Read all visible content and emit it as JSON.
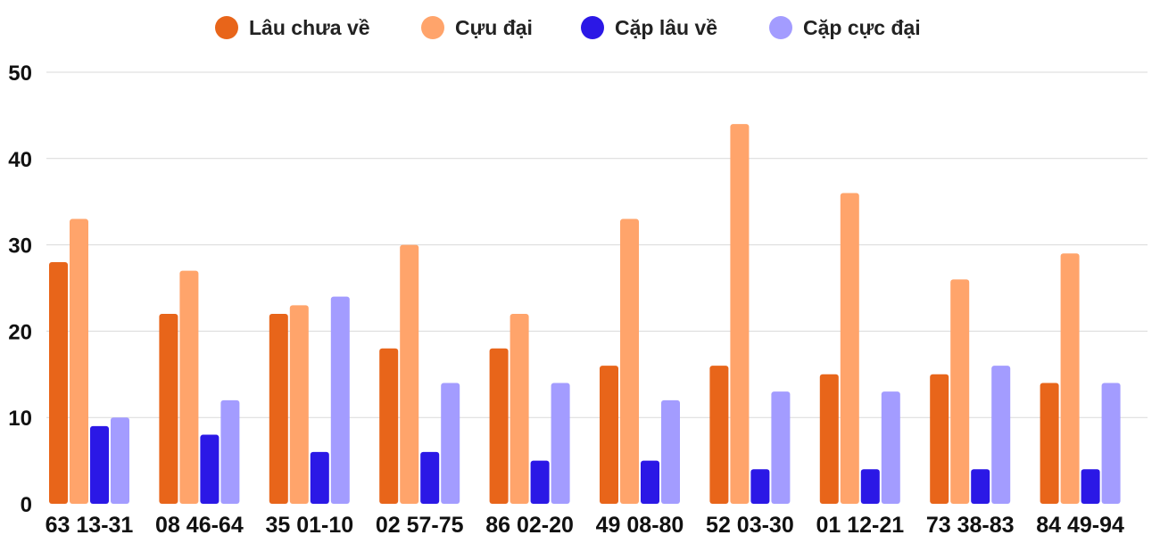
{
  "chart_data": {
    "type": "bar",
    "title": "",
    "xlabel": "",
    "ylabel": "",
    "ylim": [
      0,
      50
    ],
    "yticks": [
      0,
      10,
      20,
      30,
      40,
      50
    ],
    "grid": true,
    "legend_position": "top-center",
    "categories": [
      "63 13-31",
      "08 46-64",
      "35 01-10",
      "02 57-75",
      "86 02-20",
      "49 08-80",
      "52 03-30",
      "01 12-21",
      "73 38-83",
      "84 49-94"
    ],
    "series": [
      {
        "name": "Lâu chưa về",
        "color": "#E8651A",
        "values": [
          28,
          22,
          22,
          18,
          18,
          16,
          16,
          15,
          15,
          14
        ]
      },
      {
        "name": "Cựu đại",
        "color": "#FFA46B",
        "values": [
          33,
          27,
          23,
          30,
          22,
          33,
          44,
          36,
          26,
          29
        ]
      },
      {
        "name": "Cặp lâu về",
        "color": "#2B18E6",
        "values": [
          9,
          8,
          6,
          6,
          5,
          5,
          4,
          4,
          4,
          4
        ]
      },
      {
        "name": "Cặp cực đại",
        "color": "#A39CFF",
        "values": [
          10,
          12,
          24,
          14,
          14,
          12,
          13,
          13,
          16,
          14
        ]
      }
    ]
  }
}
